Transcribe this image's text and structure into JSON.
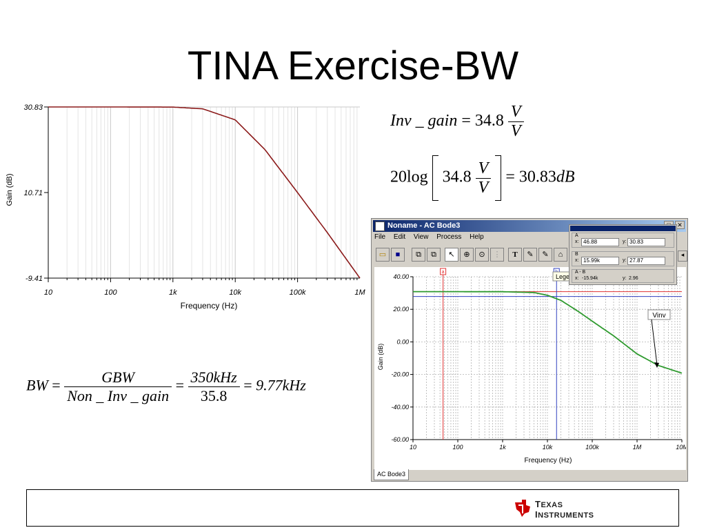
{
  "slide": {
    "title": "TINA Exercise-BW"
  },
  "left_chart": {
    "y_tick_labels": [
      "30.83",
      "10.71",
      "-9.41"
    ],
    "x_tick_labels": [
      "10",
      "100",
      "1k",
      "10k",
      "100k",
      "1M"
    ],
    "xlabel": "Frequency (Hz)",
    "ylabel": "Gain (dB)",
    "line_color": "#8b1a1a"
  },
  "equations": {
    "inv_gain": {
      "lhs": "Inv _ gain",
      "eq": "=",
      "value": "34.8",
      "num": "V",
      "den": "V"
    },
    "db": {
      "prefix": "20log",
      "value": "34.8",
      "num": "V",
      "den": "V",
      "eq": "=",
      "result": "30.83",
      "unit": "dB"
    },
    "bw": {
      "lhs": "BW",
      "eq1": "=",
      "num1": "GBW",
      "den1": "Non _ Inv _ gain",
      "eq2": "=",
      "num2": "350kHz",
      "den2": "35.8",
      "eq3": "=",
      "result": "9.77kHz"
    }
  },
  "tina_window": {
    "title": "Noname - AC Bode3",
    "menu": [
      "File",
      "Edit",
      "View",
      "Process",
      "Help"
    ],
    "legend_label": "Legend",
    "cursor_panel": {
      "a": {
        "label": "A",
        "x_label": "x:",
        "x": "46.88",
        "y_label": "y:",
        "y": "30.83"
      },
      "b": {
        "label": "B",
        "x_label": "x:",
        "x": "15.99k",
        "y_label": "y:",
        "y": "27.87"
      },
      "diff": {
        "label": "A - B",
        "x_label": "x:",
        "x": "-15.94k",
        "y_label": "y:",
        "y": "2.96"
      }
    },
    "tab": "AC Bode3",
    "plot": {
      "y_tick_labels": [
        "40.00",
        "20.00",
        "0.00",
        "-20.00",
        "-40.00",
        "-60.00"
      ],
      "x_tick_labels": [
        "10",
        "100",
        "1k",
        "10k",
        "100k",
        "1M",
        "10M"
      ],
      "xlabel": "Frequency (Hz)",
      "ylabel": "Gain (dB)",
      "series_label": "Vinv",
      "cursor_a_marker": "a",
      "cursor_b_marker": "b",
      "curve_color": "#2e9a2e",
      "cursor_a_color": "#e03030",
      "cursor_b_color": "#3040c0"
    }
  },
  "chart_data": [
    {
      "type": "line",
      "xlabel": "Frequency (Hz)",
      "ylabel": "Gain (dB)",
      "x_scale": "log",
      "xlim": [
        10,
        1000000
      ],
      "ylim": [
        -9.41,
        30.83
      ],
      "x": [
        10,
        100,
        1000,
        3000,
        10000,
        30000,
        100000,
        300000,
        1000000
      ],
      "y": [
        30.83,
        30.83,
        30.8,
        30.4,
        27.8,
        20.8,
        10.7,
        1.3,
        -9.41
      ],
      "grid": true
    },
    {
      "type": "line",
      "xlabel": "Frequency (Hz)",
      "ylabel": "Gain (dB)",
      "x_scale": "log",
      "xlim": [
        10,
        10000000
      ],
      "ylim": [
        -60,
        40
      ],
      "series": [
        {
          "name": "Vinv",
          "x": [
            10,
            100,
            1000,
            5000,
            10000,
            20000,
            50000,
            100000,
            300000,
            1000000,
            3000000,
            10000000
          ],
          "y": [
            30.83,
            30.83,
            30.8,
            30.3,
            28.6,
            25.5,
            18.5,
            12.7,
            3.7,
            -7.4,
            -14.5,
            -19.2
          ]
        }
      ],
      "cursors": {
        "A": {
          "x": 46.88,
          "y": 30.83
        },
        "B": {
          "x": 15990,
          "y": 27.87
        }
      },
      "grid": true
    }
  ]
}
